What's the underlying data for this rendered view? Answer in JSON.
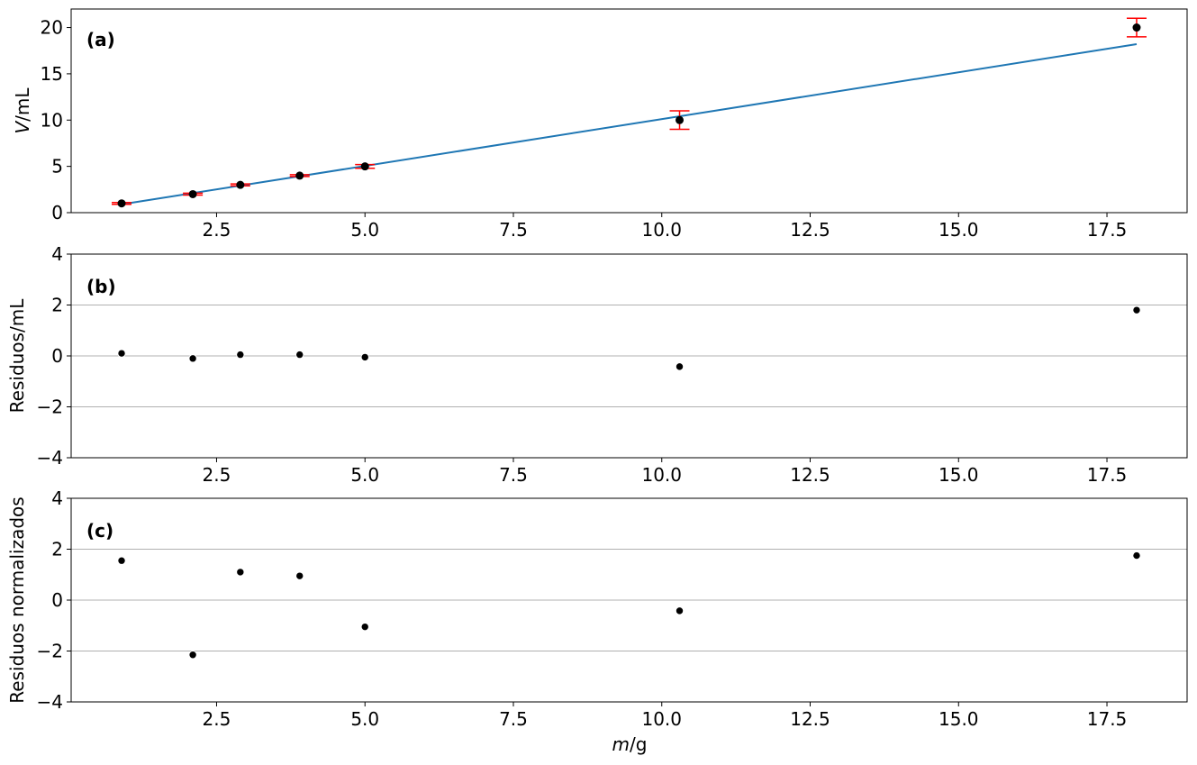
{
  "chart_data": [
    {
      "type": "scatter",
      "panel_label": "(a)",
      "ylabel_italic": "V",
      "ylabel_unit": "/mL",
      "xlabel": "",
      "xlim": [
        0.05,
        18.85
      ],
      "ylim": [
        0,
        22
      ],
      "x_ticks": [
        "2.5",
        "5.0",
        "7.5",
        "10.0",
        "12.5",
        "15.0",
        "17.5"
      ],
      "y_ticks": [
        "0",
        "5",
        "10",
        "15",
        "20"
      ],
      "grid": false,
      "series": [
        {
          "kind": "errorbar",
          "x": [
            0.9,
            2.1,
            2.9,
            3.9,
            5.0,
            10.3,
            18.0
          ],
          "y": [
            1.0,
            2.0,
            3.0,
            4.0,
            5.0,
            10.0,
            20.0
          ],
          "yerr": [
            0.1,
            0.1,
            0.1,
            0.1,
            0.2,
            1.0,
            1.0
          ]
        },
        {
          "kind": "fit_line",
          "x": [
            0.9,
            18.0
          ],
          "y": [
            0.9,
            18.2
          ]
        }
      ]
    },
    {
      "type": "scatter",
      "panel_label": "(b)",
      "ylabel": "Residuos/mL",
      "xlabel": "",
      "xlim": [
        0.05,
        18.85
      ],
      "ylim": [
        -4,
        4
      ],
      "x_ticks": [
        "2.5",
        "5.0",
        "7.5",
        "10.0",
        "12.5",
        "15.0",
        "17.5"
      ],
      "y_ticks": [
        "−4",
        "−2",
        "0",
        "2",
        "4"
      ],
      "grid": true,
      "series": [
        {
          "x": [
            0.9,
            2.1,
            2.9,
            3.9,
            5.0,
            10.3,
            18.0
          ],
          "y": [
            0.1,
            -0.1,
            0.05,
            0.05,
            -0.05,
            -0.42,
            1.8
          ]
        }
      ]
    },
    {
      "type": "scatter",
      "panel_label": "(c)",
      "ylabel": "Residuos normalizados",
      "xlabel_italic": "m",
      "xlabel_unit": "/g",
      "xlim": [
        0.05,
        18.85
      ],
      "ylim": [
        -4,
        4
      ],
      "x_ticks": [
        "2.5",
        "5.0",
        "7.5",
        "10.0",
        "12.5",
        "15.0",
        "17.5"
      ],
      "y_ticks": [
        "−4",
        "−2",
        "0",
        "2",
        "4"
      ],
      "grid": true,
      "series": [
        {
          "x": [
            0.9,
            2.1,
            2.9,
            3.9,
            5.0,
            10.3,
            18.0
          ],
          "y": [
            1.55,
            -2.15,
            1.1,
            0.95,
            -1.05,
            -0.42,
            1.75
          ]
        }
      ]
    }
  ],
  "colors": {
    "fit_line": "#1f77b4",
    "errorbar": "#ff0000",
    "marker": "#000000",
    "marker_edge": "#ffffff",
    "grid": "#b0b0b0"
  }
}
